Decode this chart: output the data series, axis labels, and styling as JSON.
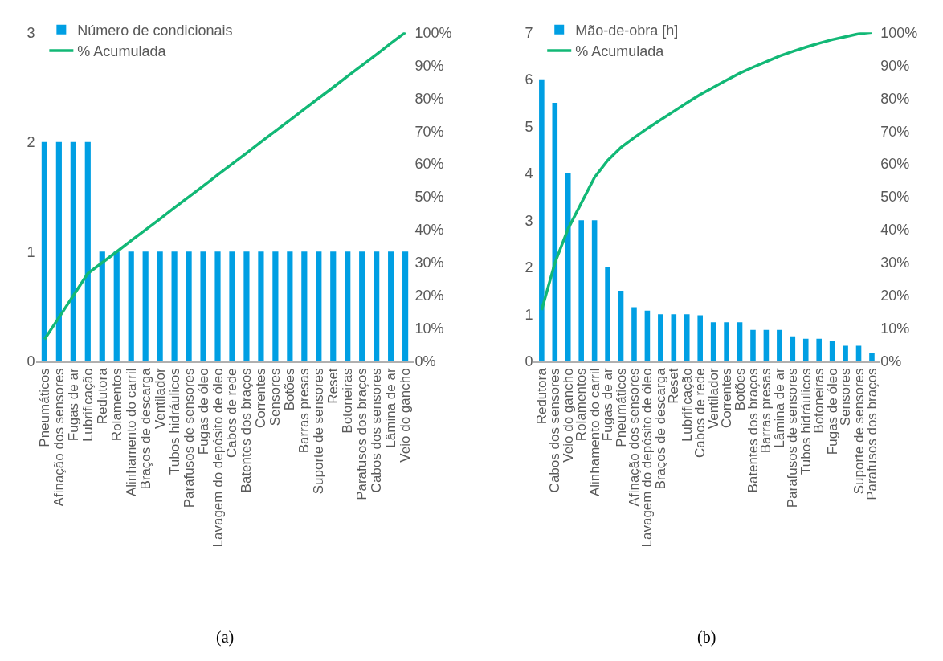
{
  "chart_data": [
    {
      "type": "bar",
      "categories": [
        "Pneumáticos",
        "Afinação dos sensores",
        "Fugas de ar",
        "Lubrificação",
        "Redutora",
        "Rolamentos",
        "Alinhamento do carril",
        "Braços de descarga",
        "Ventilador",
        "Tubos hidráulicos",
        "Parafusos de sensores",
        "Fugas de óleo",
        "Lavagem do depósito de óleo",
        "Cabos de rede",
        "Batentes dos braços",
        "Correntes",
        "Sensores",
        "Botões",
        "Barras presas",
        "Suporte de sensores",
        "Reset",
        "Botoneiras",
        "Parafusos dos braços",
        "Cabos dos sensores",
        "Lâmina de ar",
        "Veio do gancho"
      ],
      "series": [
        {
          "name": "Número de condicionais",
          "color": "#009fe3",
          "values": [
            2,
            2,
            2,
            2,
            1,
            1,
            1,
            1,
            1,
            1,
            1,
            1,
            1,
            1,
            1,
            1,
            1,
            1,
            1,
            1,
            1,
            1,
            1,
            1,
            1,
            1
          ]
        },
        {
          "name": "% Acumulada",
          "type": "line",
          "axis": "y2",
          "color": "#12b876",
          "values": [
            6.7,
            13.3,
            20,
            26.7,
            30,
            33.3,
            36.7,
            40,
            43.3,
            46.7,
            50,
            53.3,
            56.7,
            60,
            63.3,
            66.7,
            70,
            73.3,
            76.7,
            80,
            83.3,
            86.7,
            90,
            93.3,
            96.7,
            100
          ]
        }
      ],
      "ylim": [
        0,
        3
      ],
      "yticks": [
        0,
        1,
        2,
        3
      ],
      "y2lim": [
        0,
        100
      ],
      "y2ticks": [
        {
          "value": 0,
          "label": "0%"
        },
        {
          "value": 10,
          "label": "10%"
        },
        {
          "value": 20,
          "label": "20%"
        },
        {
          "value": 30,
          "label": "30%"
        },
        {
          "value": 40,
          "label": "40%"
        },
        {
          "value": 50,
          "label": "50%"
        },
        {
          "value": 60,
          "label": "60%"
        },
        {
          "value": 70,
          "label": "70%"
        },
        {
          "value": 80,
          "label": "80%"
        },
        {
          "value": 90,
          "label": "90%"
        },
        {
          "value": 100,
          "label": "100%"
        }
      ],
      "legend": "top left",
      "annotations": [
        "(a)"
      ]
    },
    {
      "type": "bar",
      "categories": [
        "Redutora",
        "Cabos dos sensores",
        "Veio do gancho",
        "Rolamentos",
        "Alinhamento do carril",
        "Fugas de ar",
        "Pneumáticos",
        "Afinação dos sensores",
        "Lavagem do depósito de óleo",
        "Braços de descarga",
        "Reset",
        "Lubrificação",
        "Cabos de rede",
        "Ventilador",
        "Correntes",
        "Botões",
        "Batentes dos braços",
        "Barras presas",
        "Lâmina de ar",
        "Parafusos de sensores",
        "Tubos hidráulicos",
        "Botoneiras",
        "Fugas de óleo",
        "Sensores",
        "Suporte de sensores",
        "Parafusos dos braços"
      ],
      "series": [
        {
          "name": "Mão-de-obra [h]",
          "color": "#009fe3",
          "values": [
            6,
            5.5,
            4,
            3,
            3,
            2,
            1.5,
            1.15,
            1.08,
            1,
            1,
            1,
            0.98,
            0.83,
            0.83,
            0.83,
            0.67,
            0.67,
            0.67,
            0.53,
            0.48,
            0.48,
            0.43,
            0.33,
            0.33,
            0.17
          ]
        },
        {
          "name": "% Acumulada",
          "type": "line",
          "axis": "y2",
          "color": "#12b876",
          "values": [
            15.6,
            29.9,
            40.3,
            48.1,
            55.9,
            61.1,
            65,
            68,
            70.8,
            73.4,
            76,
            78.6,
            81.1,
            83.3,
            85.5,
            87.6,
            89.4,
            91.1,
            92.8,
            94.2,
            95.5,
            96.7,
            97.8,
            98.7,
            99.6,
            100
          ]
        }
      ],
      "ylim": [
        0,
        7
      ],
      "yticks": [
        0,
        1,
        2,
        3,
        4,
        5,
        6,
        7
      ],
      "y2lim": [
        0,
        100
      ],
      "y2ticks": [
        {
          "value": 0,
          "label": "0%"
        },
        {
          "value": 10,
          "label": "10%"
        },
        {
          "value": 20,
          "label": "20%"
        },
        {
          "value": 30,
          "label": "30%"
        },
        {
          "value": 40,
          "label": "40%"
        },
        {
          "value": 50,
          "label": "50%"
        },
        {
          "value": 60,
          "label": "60%"
        },
        {
          "value": 70,
          "label": "70%"
        },
        {
          "value": 80,
          "label": "80%"
        },
        {
          "value": 90,
          "label": "90%"
        },
        {
          "value": 100,
          "label": "100%"
        }
      ],
      "legend": "top left",
      "annotations": [
        "(b)"
      ]
    }
  ]
}
